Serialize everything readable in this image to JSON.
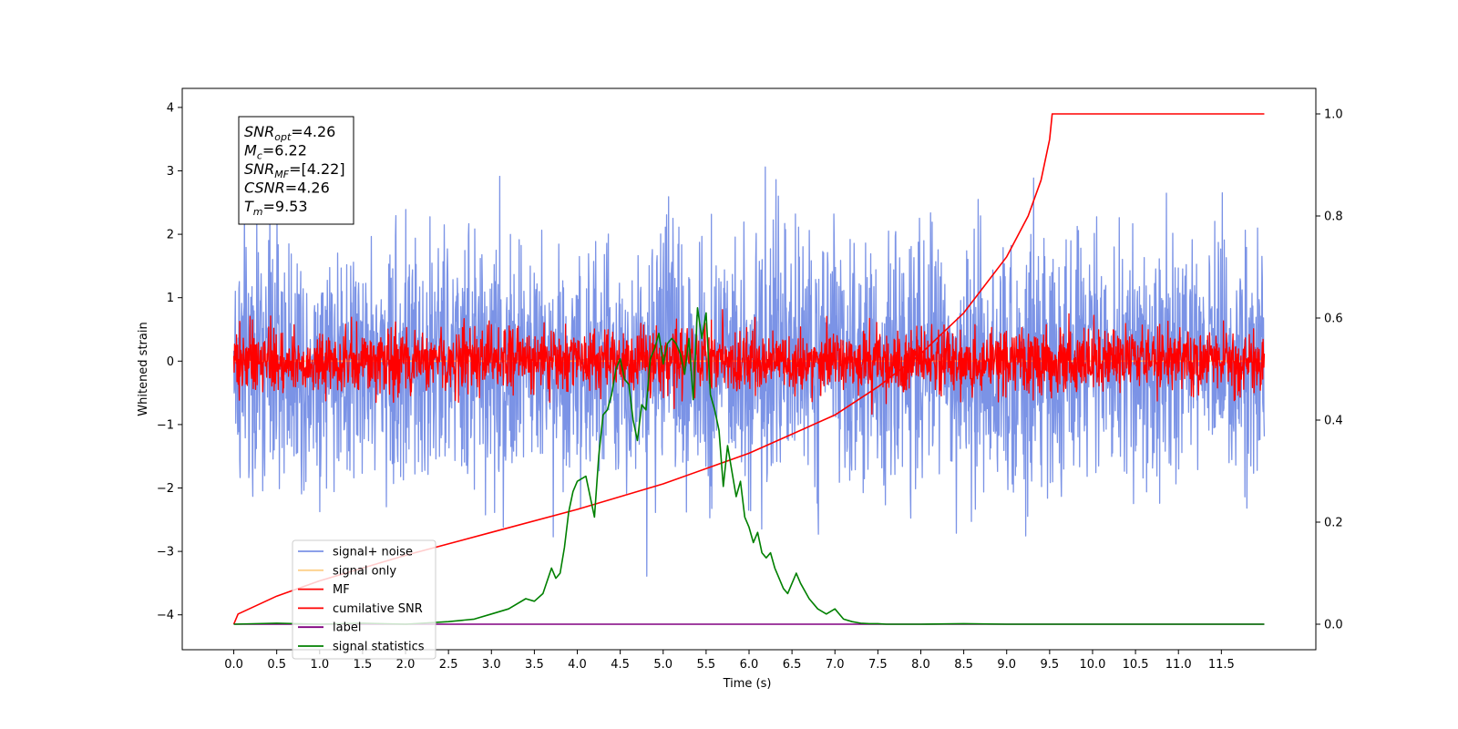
{
  "chart_data": {
    "type": "line",
    "xlabel": "Time (s)",
    "ylabel": "Whitened strain",
    "x_ticks": [
      "0.0",
      "0.5",
      "1.0",
      "1.5",
      "2.0",
      "2.5",
      "3.0",
      "3.5",
      "4.0",
      "4.5",
      "5.0",
      "5.5",
      "6.0",
      "6.5",
      "7.0",
      "7.5",
      "8.0",
      "8.5",
      "9.0",
      "9.5",
      "10.0",
      "10.5",
      "11.0",
      "11.5"
    ],
    "y_ticks_left": [
      "4",
      "3",
      "2",
      "1",
      "0",
      "−1",
      "−2",
      "−3",
      "−4"
    ],
    "y_ticks_right": [
      "1.0",
      "0.8",
      "0.6",
      "0.4",
      "0.2",
      "0.0"
    ],
    "xlim": [
      -0.6,
      12.6
    ],
    "ylim_left": [
      -4.55,
      4.3
    ],
    "ylim_right": [
      -0.05,
      1.05
    ],
    "grid": false,
    "legend_position": "lower-left",
    "annotation": [
      {
        "name": "SNR",
        "sub": "opt",
        "value": "=4.26"
      },
      {
        "name": "M",
        "sub": "c",
        "value": "=6.22"
      },
      {
        "name": "SNR",
        "sub": "MF",
        "value": "=[4.22]"
      },
      {
        "name": "CSNR",
        "sub": "",
        "value": "=4.26"
      },
      {
        "name": "T",
        "sub": "m",
        "value": "=9.53"
      }
    ],
    "series": [
      {
        "name": "signal+ noise",
        "color": "#7b93e6",
        "axis": "left",
        "kind": "noise",
        "amplitude": 1.8,
        "x_range": [
          0,
          12
        ]
      },
      {
        "name": "signal only",
        "color": "#fdd08a",
        "axis": "left",
        "kind": "flat",
        "x_range": [
          0,
          12
        ]
      },
      {
        "name": "MF",
        "color": "#ff0000",
        "axis": "left",
        "kind": "noise",
        "amplitude": 0.45,
        "x_range": [
          0,
          12
        ]
      },
      {
        "name": "cumilative SNR",
        "color": "#ff0000",
        "axis": "right",
        "x": [
          0,
          0.05,
          0.5,
          1.0,
          2.0,
          3.0,
          4.0,
          5.0,
          6.0,
          7.0,
          7.5,
          8.0,
          8.5,
          9.0,
          9.25,
          9.4,
          9.5,
          9.53,
          12.0
        ],
        "y": [
          0.0,
          0.02,
          0.055,
          0.085,
          0.135,
          0.18,
          0.225,
          0.275,
          0.335,
          0.41,
          0.465,
          0.53,
          0.61,
          0.72,
          0.8,
          0.87,
          0.95,
          1.0,
          1.0
        ]
      },
      {
        "name": "label",
        "color": "#800080",
        "axis": "right",
        "x": [
          0,
          12
        ],
        "y": [
          0.0,
          0.0
        ]
      },
      {
        "name": "signal statistics",
        "color": "#008000",
        "axis": "right",
        "x": [
          0,
          0.5,
          1,
          1.5,
          2,
          2.5,
          2.8,
          3,
          3.2,
          3.4,
          3.5,
          3.6,
          3.7,
          3.75,
          3.8,
          3.85,
          3.9,
          3.95,
          4.0,
          4.1,
          4.2,
          4.25,
          4.3,
          4.35,
          4.4,
          4.45,
          4.5,
          4.55,
          4.6,
          4.65,
          4.7,
          4.75,
          4.8,
          4.85,
          4.9,
          4.95,
          5.0,
          5.05,
          5.1,
          5.15,
          5.2,
          5.25,
          5.3,
          5.35,
          5.4,
          5.45,
          5.5,
          5.55,
          5.6,
          5.65,
          5.7,
          5.75,
          5.8,
          5.85,
          5.9,
          5.95,
          6.0,
          6.05,
          6.1,
          6.15,
          6.2,
          6.25,
          6.3,
          6.35,
          6.4,
          6.45,
          6.5,
          6.55,
          6.6,
          6.7,
          6.8,
          6.9,
          7.0,
          7.1,
          7.2,
          7.3,
          7.4,
          7.5,
          7.6,
          8.0,
          8.5,
          9.0,
          10.0,
          11.0,
          12.0
        ],
        "y": [
          0.0,
          0.002,
          0.0,
          0.002,
          0.0,
          0.005,
          0.01,
          0.02,
          0.03,
          0.05,
          0.045,
          0.06,
          0.11,
          0.09,
          0.1,
          0.15,
          0.22,
          0.26,
          0.28,
          0.29,
          0.21,
          0.33,
          0.41,
          0.42,
          0.45,
          0.5,
          0.52,
          0.48,
          0.47,
          0.4,
          0.36,
          0.43,
          0.42,
          0.52,
          0.54,
          0.57,
          0.51,
          0.55,
          0.56,
          0.55,
          0.53,
          0.49,
          0.56,
          0.44,
          0.62,
          0.56,
          0.61,
          0.45,
          0.42,
          0.38,
          0.27,
          0.35,
          0.3,
          0.25,
          0.28,
          0.21,
          0.19,
          0.16,
          0.18,
          0.14,
          0.13,
          0.14,
          0.11,
          0.09,
          0.07,
          0.06,
          0.08,
          0.1,
          0.08,
          0.05,
          0.03,
          0.02,
          0.03,
          0.01,
          0.005,
          0.002,
          0.001,
          0.001,
          0.0,
          0.0,
          0.001,
          0.0,
          0.0,
          0.0,
          0.0
        ]
      }
    ]
  }
}
